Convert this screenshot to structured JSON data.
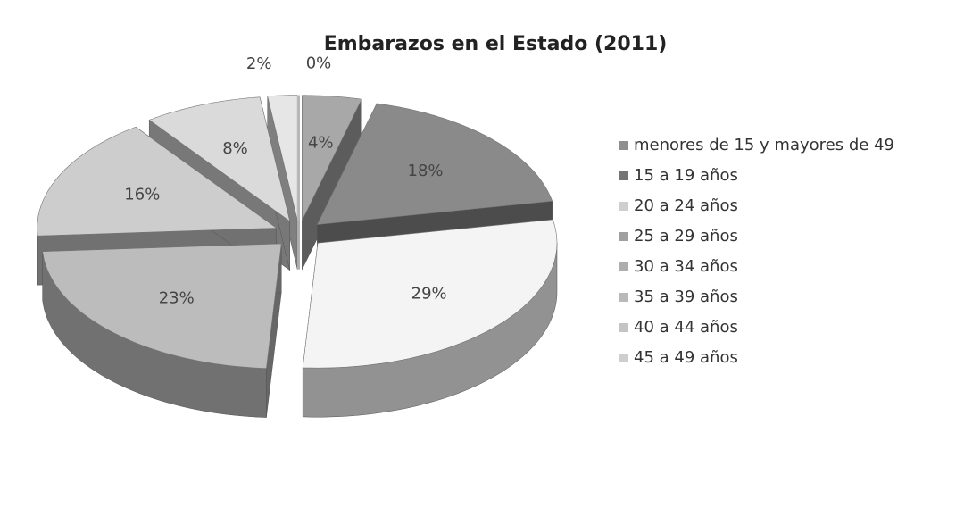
{
  "chart_data": {
    "type": "pie3d",
    "title": "Embarazos en el Estado (2011)",
    "categories": [
      "menores de 15 y mayores de 49",
      "15 a 19 años",
      "20 a 24 años",
      "25 a 29 años",
      "30 a 34 años",
      "35 a 39 años",
      "40 a 44 años",
      "45 a 49 años"
    ],
    "values": [
      4,
      18,
      29,
      23,
      16,
      8,
      2,
      0
    ],
    "value_labels": [
      "4%",
      "18%",
      "29%",
      "23%",
      "16%",
      "8%",
      "2%",
      "0%"
    ],
    "colors": [
      "#a8a8a8",
      "#8a8a8a",
      "#f4f4f4",
      "#bcbcbc",
      "#cdcdcd",
      "#dadada",
      "#e6e6e6",
      "#f2f2f2"
    ],
    "legend": "right"
  }
}
